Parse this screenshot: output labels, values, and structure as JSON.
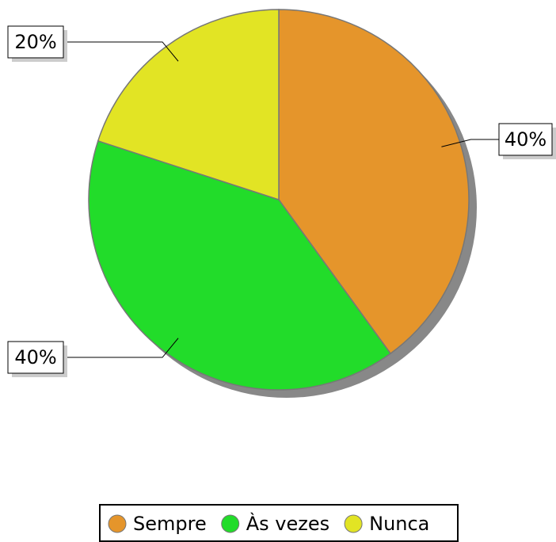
{
  "chart_data": {
    "type": "pie",
    "categories": [
      "Sempre",
      "Às vezes",
      "Nunca"
    ],
    "values": [
      40,
      40,
      20
    ],
    "value_labels": [
      "40%",
      "40%",
      "20%"
    ],
    "colors": [
      "#e5952b",
      "#22dc2a",
      "#e2e424"
    ],
    "legend": "bottom"
  }
}
